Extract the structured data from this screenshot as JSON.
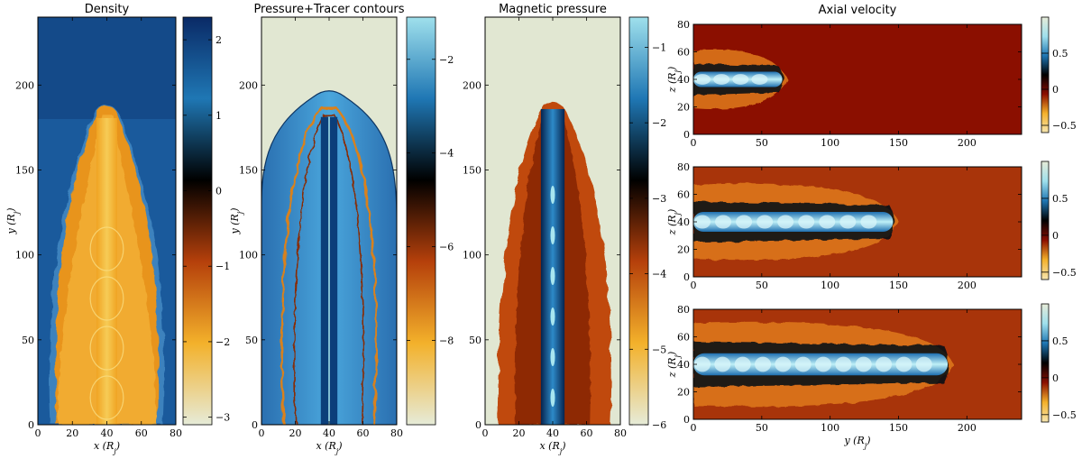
{
  "chart_data": [
    {
      "type": "heatmap",
      "title": "Density",
      "xlabel": "x (R_j)",
      "ylabel": "y (R_j)",
      "xlim": [
        0,
        80
      ],
      "ylim": [
        0,
        240
      ],
      "xticks": [
        0,
        20,
        40,
        60,
        80
      ],
      "yticks": [
        0,
        50,
        100,
        150,
        200
      ],
      "colorbar": {
        "range": [
          -3.1,
          2.3
        ],
        "ticks": [
          2,
          1,
          0,
          -1,
          -2,
          -3
        ],
        "colors": [
          "#0a2a66",
          "#1f77b4",
          "#000000",
          "#b5400b",
          "#f3b12b",
          "#e6ebd8"
        ]
      },
      "jet": {
        "axis": "y",
        "center": 40,
        "half_width": 12,
        "head": 188
      }
    },
    {
      "type": "heatmap",
      "title": "Pressure+Tracer contours",
      "xlabel": "x (R_j)",
      "ylabel": "y (R_j)",
      "xlim": [
        0,
        80
      ],
      "ylim": [
        0,
        240
      ],
      "xticks": [
        0,
        20,
        40,
        60,
        80
      ],
      "yticks": [
        0,
        50,
        100,
        150,
        200
      ],
      "colorbar": {
        "range": [
          -9.8,
          -1.1
        ],
        "ticks": [
          -2,
          -4,
          -6,
          -8
        ],
        "colors": [
          "#9fe0ec",
          "#1f77b4",
          "#000000",
          "#b5400b",
          "#f3b12b",
          "#e6ebd8"
        ]
      },
      "jet": {
        "axis": "y",
        "center": 40,
        "half_width": 14,
        "head": 195
      }
    },
    {
      "type": "heatmap",
      "title": "Magnetic pressure",
      "xlabel": "x (R_j)",
      "ylabel": "",
      "xlim": [
        0,
        80
      ],
      "ylim": [
        0,
        240
      ],
      "xticks": [
        0,
        20,
        40,
        60,
        80
      ],
      "yticks": [
        0,
        50,
        100,
        150,
        200
      ],
      "colorbar": {
        "range": [
          -6.0,
          -0.6
        ],
        "ticks": [
          -1,
          -2,
          -3,
          -4,
          -5,
          -6
        ],
        "colors": [
          "#9fe0ec",
          "#1f77b4",
          "#000000",
          "#b5400b",
          "#f3b12b",
          "#e6ebd8"
        ]
      },
      "jet": {
        "axis": "y",
        "center": 40,
        "half_width": 10,
        "head": 188
      }
    },
    {
      "type": "heatmap",
      "title": "Axial velocity",
      "xlabel": "",
      "ylabel": "z (R_j)",
      "xlim": [
        0,
        240
      ],
      "ylim": [
        0,
        80
      ],
      "xticks": [
        0,
        50,
        100,
        150,
        200
      ],
      "yticks": [
        0,
        20,
        40,
        60,
        80
      ],
      "colorbar": {
        "range": [
          -0.6,
          1.0
        ],
        "ticks": [
          0.5,
          0.0,
          -0.5
        ],
        "colors": [
          "#e6ebd8",
          "#9fe0ec",
          "#1f77b4",
          "#000000",
          "#8b0f00",
          "#f3b12b",
          "#f6e6b0"
        ]
      },
      "jet": {
        "axis": "x",
        "center": 40,
        "half_width": 7,
        "head": 65
      }
    },
    {
      "type": "heatmap",
      "title": "",
      "xlabel": "",
      "ylabel": "z (R_j)",
      "xlim": [
        0,
        240
      ],
      "ylim": [
        0,
        80
      ],
      "xticks": [
        0,
        50,
        100,
        150,
        200
      ],
      "yticks": [
        0,
        20,
        40,
        60,
        80
      ],
      "colorbar": {
        "range": [
          -0.6,
          1.0
        ],
        "ticks": [
          0.5,
          0.0,
          -0.5
        ],
        "colors": [
          "#e6ebd8",
          "#9fe0ec",
          "#1f77b4",
          "#000000",
          "#8b0f00",
          "#f3b12b",
          "#f6e6b0"
        ]
      },
      "jet": {
        "axis": "x",
        "center": 40,
        "half_width": 9,
        "head": 146
      }
    },
    {
      "type": "heatmap",
      "title": "",
      "xlabel": "y (R_j)",
      "ylabel": "z (R_j)",
      "xlim": [
        0,
        240
      ],
      "ylim": [
        0,
        80
      ],
      "xticks": [
        0,
        50,
        100,
        150,
        200
      ],
      "yticks": [
        0,
        20,
        40,
        60,
        80
      ],
      "colorbar": {
        "range": [
          -0.6,
          1.0
        ],
        "ticks": [
          0.5,
          0.0,
          -0.5
        ],
        "colors": [
          "#e6ebd8",
          "#9fe0ec",
          "#1f77b4",
          "#000000",
          "#8b0f00",
          "#f3b12b",
          "#f6e6b0"
        ]
      },
      "jet": {
        "axis": "x",
        "center": 40,
        "half_width": 10,
        "head": 186
      }
    }
  ],
  "palette": {
    "ambient_blue": "#1a5a9c",
    "lobe_orange": "#e8941a",
    "pale_bg": "#e1e7d2",
    "dark_red_bg": "#8b0f00",
    "jet_cyan": "#a8e6f0"
  }
}
